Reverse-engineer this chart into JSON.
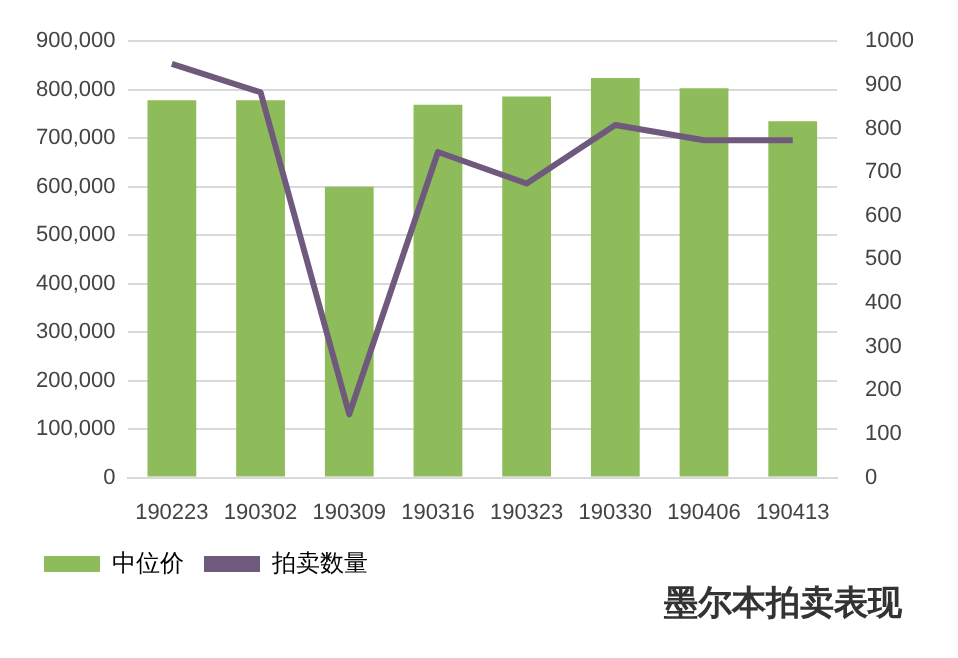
{
  "chart_data": {
    "type": "bar",
    "title": "墨尔本拍卖表现",
    "categories": [
      "190223",
      "190302",
      "190309",
      "190316",
      "190323",
      "190330",
      "190406",
      "190413"
    ],
    "series": [
      {
        "name": "中位价",
        "color": "#8fbc5a",
        "values": [
          778000,
          778000,
          600000,
          769000,
          786000,
          824000,
          803000,
          735000
        ]
      },
      {
        "name": "拍卖数量",
        "type": "line",
        "axis": "y2",
        "color": "#6f5a7e",
        "values": [
          948,
          883,
          145,
          746,
          674,
          808,
          773,
          773
        ]
      }
    ],
    "ylim": [
      0,
      900000
    ],
    "yticks": [
      {
        "value": 0,
        "label": "0"
      },
      {
        "value": 100000,
        "label": "100,000"
      },
      {
        "value": 200000,
        "label": "200,000"
      },
      {
        "value": 300000,
        "label": "300,000"
      },
      {
        "value": 400000,
        "label": "400,000"
      },
      {
        "value": 500000,
        "label": "500,000"
      },
      {
        "value": 600000,
        "label": "600,000"
      },
      {
        "value": 700000,
        "label": "700,000"
      },
      {
        "value": 800000,
        "label": "800,000"
      },
      {
        "value": 900000,
        "label": "900,000"
      }
    ],
    "y2lim": [
      0,
      1000
    ],
    "y2ticks": [
      0,
      100,
      200,
      300,
      400,
      500,
      600,
      700,
      800,
      900,
      1000
    ],
    "grid": "y",
    "legend": "bottom",
    "marker": "none"
  }
}
